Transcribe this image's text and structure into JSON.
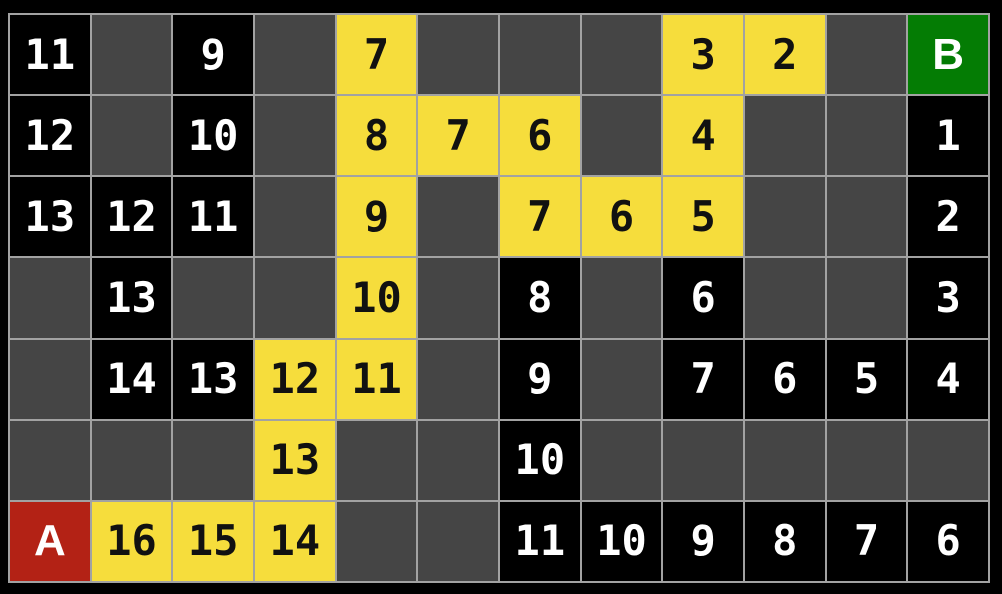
{
  "colors": {
    "frame_background": "#000000",
    "gridline": "#a2a2a2",
    "empty_cell": "#454545",
    "distance_cell": "#000000",
    "distance_text": "#ffffff",
    "path_cell": "#f6dd3c",
    "path_text": "#111111",
    "start_cell": "#b32215",
    "start_text": "#ffffff",
    "goal_cell": "#047c04",
    "goal_text": "#ffffff"
  },
  "board": {
    "rows": 7,
    "cols": 12,
    "start_label": "A",
    "goal_label": "B",
    "cell_types": {
      "e": "empty-unexplored",
      "d": "explored-distance",
      "p": "shortest-path",
      "s": "start",
      "g": "goal"
    },
    "cells": [
      [
        "d:11",
        "e",
        "d:9",
        "e",
        "p:7",
        "e",
        "e",
        "e",
        "p:3",
        "p:2",
        "e",
        "g:B"
      ],
      [
        "d:12",
        "e",
        "d:10",
        "e",
        "p:8",
        "p:7",
        "p:6",
        "e",
        "p:4",
        "e",
        "e",
        "d:1"
      ],
      [
        "d:13",
        "d:12",
        "d:11",
        "e",
        "p:9",
        "e",
        "p:7",
        "p:6",
        "p:5",
        "e",
        "e",
        "d:2"
      ],
      [
        "e",
        "d:13",
        "e",
        "e",
        "p:10",
        "e",
        "d:8",
        "e",
        "d:6",
        "e",
        "e",
        "d:3"
      ],
      [
        "e",
        "d:14",
        "d:13",
        "p:12",
        "p:11",
        "e",
        "d:9",
        "e",
        "d:7",
        "d:6",
        "d:5",
        "d:4"
      ],
      [
        "e",
        "e",
        "e",
        "p:13",
        "e",
        "e",
        "d:10",
        "e",
        "e",
        "e",
        "e",
        "e"
      ],
      [
        "s:A",
        "p:16",
        "p:15",
        "p:14",
        "e",
        "e",
        "d:11",
        "d:10",
        "d:9",
        "d:8",
        "d:7",
        "d:6"
      ]
    ]
  }
}
